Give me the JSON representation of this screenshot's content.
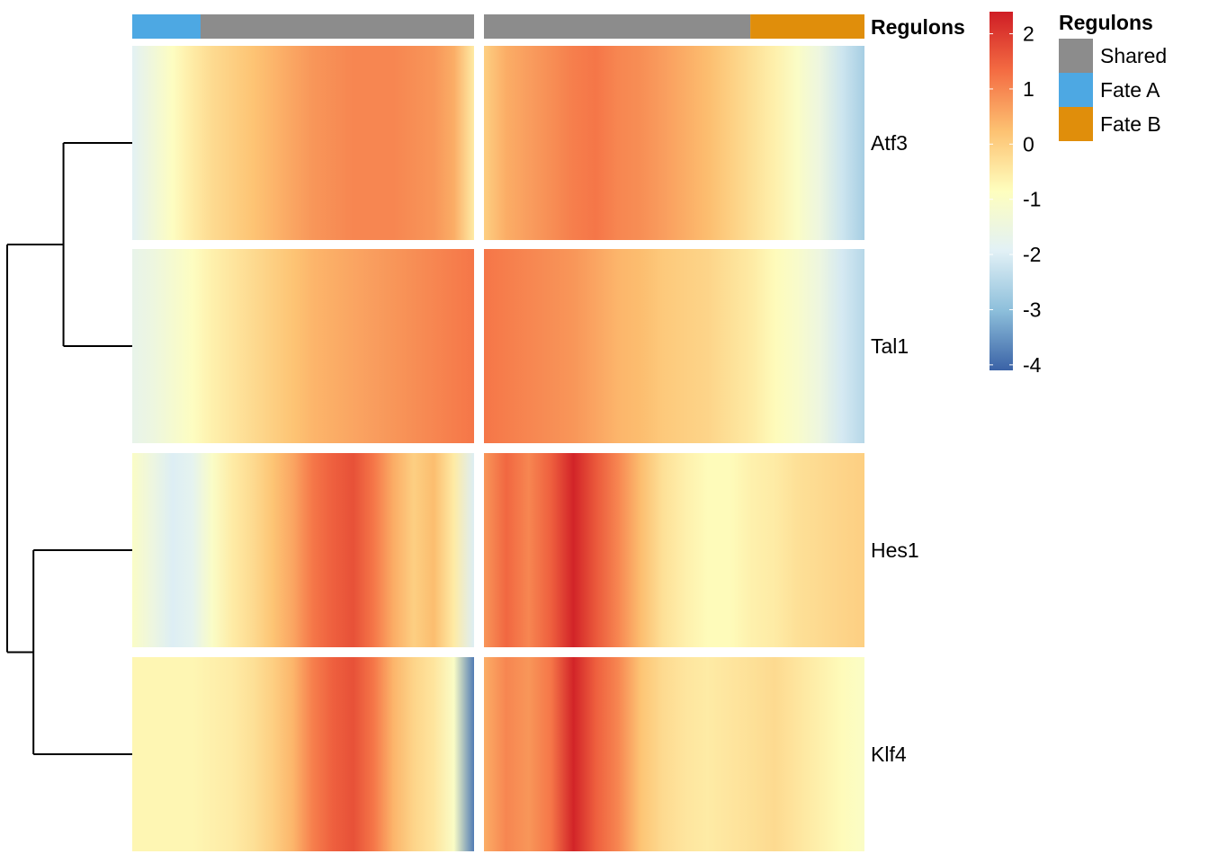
{
  "chart_data": {
    "type": "heatmap",
    "title": "",
    "xlabel": "",
    "ylabel": "",
    "rows": [
      "Atf3",
      "Tal1",
      "Hes1",
      "Klf4"
    ],
    "column_annotation": {
      "name": "Regulons",
      "panels": [
        {
          "segments": [
            {
              "label": "Fate A",
              "fraction": 0.2
            },
            {
              "label": "Shared",
              "fraction": 0.8
            }
          ]
        },
        {
          "segments": [
            {
              "label": "Shared",
              "fraction": 0.7
            },
            {
              "label": "Fate B",
              "fraction": 0.3
            }
          ]
        }
      ]
    },
    "legend_annotation": {
      "title": "Regulons",
      "entries": [
        {
          "label": "Shared",
          "color": "#8C8C8C"
        },
        {
          "label": "Fate A",
          "color": "#4DA8E3"
        },
        {
          "label": "Fate B",
          "color": "#E08E0B"
        }
      ]
    },
    "color_scale": {
      "min": -4.1,
      "max": 2.4,
      "ticks": [
        2,
        1,
        0,
        -1,
        -2,
        -3,
        -4
      ],
      "tick_labels": [
        "2",
        "1",
        "0",
        "-1",
        "-2",
        "-3",
        "-4"
      ],
      "colors": [
        "#3A62A6",
        "#8DBFDB",
        "#E2F1F6",
        "#FEFEBE",
        "#FDC272",
        "#F46D43",
        "#CF1D25"
      ]
    },
    "panels": [
      {
        "values": {
          "Atf3": [
            -1.9,
            -1.4,
            -0.9,
            -0.5,
            -0.2,
            0.0,
            0.2,
            0.4,
            0.6,
            0.8,
            0.9,
            1.0,
            1.0,
            1.0,
            0.9,
            0.8,
            0.5,
            -0.5
          ],
          "Tal1": [
            -1.7,
            -1.5,
            -1.2,
            -0.9,
            -0.6,
            -0.4,
            -0.2,
            0.0,
            0.2,
            0.4,
            0.5,
            0.6,
            0.7,
            0.8,
            0.9,
            1.0,
            1.1,
            1.2
          ],
          "Hes1": [
            -1.0,
            -1.5,
            -2.0,
            -1.8,
            -1.0,
            -0.5,
            -0.2,
            0.2,
            0.6,
            1.2,
            1.5,
            1.7,
            1.2,
            0.5,
            0.0,
            0.3,
            -0.5,
            -2.0
          ],
          "Klf4": [
            -0.7,
            -0.7,
            -0.7,
            -0.7,
            -0.6,
            -0.5,
            -0.3,
            0.0,
            0.4,
            1.1,
            1.5,
            1.7,
            1.2,
            0.4,
            -0.1,
            -0.4,
            -1.0,
            -3.8
          ]
        }
      },
      {
        "values": {
          "Atf3": [
            0.0,
            0.5,
            0.7,
            0.9,
            1.1,
            1.2,
            1.0,
            0.9,
            0.7,
            0.5,
            0.3,
            0.0,
            -0.3,
            -0.6,
            -1.0,
            -1.5,
            -2.2,
            -2.7
          ],
          "Tal1": [
            1.2,
            1.1,
            1.0,
            0.9,
            0.8,
            0.6,
            0.4,
            0.3,
            0.1,
            0.0,
            -0.1,
            -0.3,
            -0.5,
            -0.8,
            -1.1,
            -1.5,
            -2.1,
            -2.5
          ],
          "Hes1": [
            0.8,
            1.4,
            1.0,
            1.5,
            2.3,
            1.6,
            1.0,
            0.3,
            -0.3,
            -0.6,
            -0.8,
            -0.8,
            -0.6,
            -0.5,
            -0.3,
            -0.2,
            -0.1,
            0.0
          ],
          "Klf4": [
            0.5,
            1.0,
            0.8,
            1.2,
            2.3,
            1.5,
            1.0,
            0.2,
            -0.2,
            -0.4,
            -0.5,
            -0.4,
            -0.3,
            -0.2,
            -0.4,
            -0.6,
            -0.8,
            -1.0
          ]
        }
      }
    ],
    "dendrogram": {
      "merges": [
        {
          "left": "Atf3",
          "right": "Tal1",
          "height": 0.55
        },
        {
          "left": "Hes1",
          "right": "Klf4",
          "height": 0.79
        },
        {
          "left": "Atf3-Tal1",
          "right": "Hes1-Klf4",
          "height": 1.0
        }
      ]
    }
  }
}
